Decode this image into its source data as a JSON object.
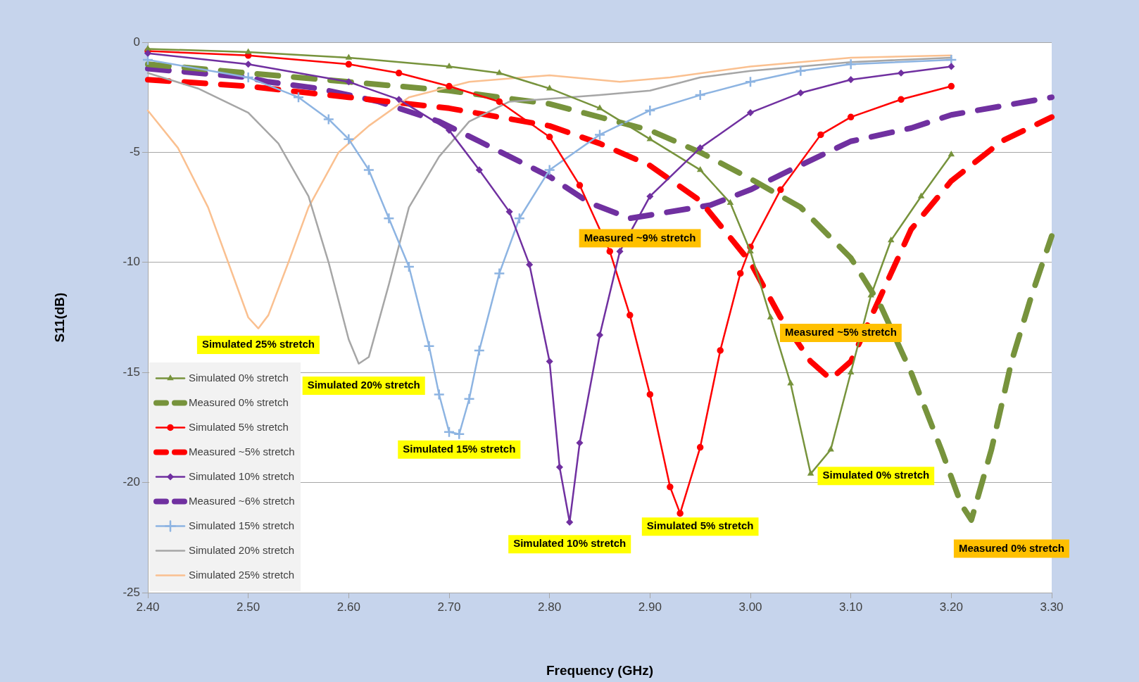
{
  "chart_data": {
    "type": "line",
    "xlabel": "Frequency (GHz)",
    "ylabel": "S11(dB)",
    "xlim": [
      2.4,
      3.3
    ],
    "xticks": [
      {
        "value": 2.4,
        "label": "2.40"
      },
      {
        "value": 2.5,
        "label": "2.50"
      },
      {
        "value": 2.6,
        "label": "2.60"
      },
      {
        "value": 2.7,
        "label": "2.70"
      },
      {
        "value": 2.8,
        "label": "2.80"
      },
      {
        "value": 2.9,
        "label": "2.90"
      },
      {
        "value": 3.0,
        "label": "3.00"
      },
      {
        "value": 3.1,
        "label": "3.10"
      },
      {
        "value": 3.2,
        "label": "3.20"
      },
      {
        "value": 3.3,
        "label": "3.30"
      }
    ],
    "ylim": [
      -25,
      0
    ],
    "yticks": [
      -25,
      -20,
      -15,
      -10,
      -5,
      0
    ],
    "grid": "y",
    "legend": "bottom left",
    "series": [
      {
        "name": "Simulated 0% stretch",
        "color": "#77933c",
        "marker": "triangle",
        "line_style": "solid",
        "x": [
          2.4,
          2.5,
          2.6,
          2.7,
          2.75,
          2.8,
          2.85,
          2.9,
          2.95,
          2.98,
          3.0,
          3.02,
          3.04,
          3.06,
          3.08,
          3.1,
          3.12,
          3.14,
          3.17,
          3.2
        ],
        "values": [
          -0.3,
          -0.45,
          -0.7,
          -1.1,
          -1.4,
          -2.1,
          -3.0,
          -4.4,
          -5.8,
          -7.3,
          -9.5,
          -12.5,
          -15.5,
          -19.6,
          -18.5,
          -15,
          -11.5,
          -9,
          -7,
          -5.1
        ]
      },
      {
        "name": "Measured 0% stretch",
        "color": "#77933c",
        "marker": "none",
        "line_style": "dashed",
        "x": [
          2.4,
          2.5,
          2.6,
          2.7,
          2.8,
          2.9,
          2.95,
          3.0,
          3.05,
          3.1,
          3.13,
          3.16,
          3.19,
          3.21,
          3.22,
          3.24,
          3.26,
          3.28,
          3.3
        ],
        "values": [
          -1.0,
          -1.4,
          -1.8,
          -2.2,
          -2.8,
          -4.0,
          -5.0,
          -6.2,
          -7.5,
          -9.8,
          -12,
          -15,
          -18.5,
          -21,
          -21.7,
          -18.5,
          -14.5,
          -11.5,
          -8.8
        ]
      },
      {
        "name": "Simulated 5% stretch",
        "color": "#ff0000",
        "marker": "circle",
        "line_style": "solid",
        "x": [
          2.4,
          2.5,
          2.6,
          2.65,
          2.7,
          2.75,
          2.8,
          2.83,
          2.86,
          2.88,
          2.9,
          2.92,
          2.93,
          2.95,
          2.97,
          2.99,
          3.0,
          3.03,
          3.07,
          3.1,
          3.15,
          3.2
        ],
        "values": [
          -0.4,
          -0.6,
          -1.0,
          -1.4,
          -2.0,
          -2.7,
          -4.3,
          -6.5,
          -9.5,
          -12.4,
          -16,
          -20.2,
          -21.4,
          -18.4,
          -14,
          -10.5,
          -9.3,
          -6.7,
          -4.2,
          -3.4,
          -2.6,
          -2.0
        ]
      },
      {
        "name": "Measured ~5% stretch",
        "color": "#ff0000",
        "marker": "none",
        "line_style": "dashed",
        "x": [
          2.4,
          2.5,
          2.6,
          2.7,
          2.8,
          2.85,
          2.9,
          2.95,
          3.0,
          3.03,
          3.06,
          3.08,
          3.1,
          3.13,
          3.16,
          3.2,
          3.25,
          3.3
        ],
        "values": [
          -1.7,
          -2.0,
          -2.5,
          -3.0,
          -3.8,
          -4.6,
          -5.6,
          -7.2,
          -10,
          -12.5,
          -14.5,
          -15.3,
          -14.5,
          -11.5,
          -8.5,
          -6.3,
          -4.5,
          -3.4
        ]
      },
      {
        "name": "Simulated 10% stretch",
        "color": "#7030a0",
        "marker": "diamond",
        "line_style": "solid",
        "x": [
          2.4,
          2.5,
          2.6,
          2.65,
          2.7,
          2.73,
          2.76,
          2.78,
          2.8,
          2.81,
          2.82,
          2.83,
          2.85,
          2.87,
          2.9,
          2.95,
          3.0,
          3.05,
          3.1,
          3.15,
          3.2
        ],
        "values": [
          -0.5,
          -1.0,
          -1.8,
          -2.6,
          -4.0,
          -5.8,
          -7.7,
          -10.1,
          -14.5,
          -19.3,
          -21.8,
          -18.2,
          -13.3,
          -9.5,
          -7,
          -4.8,
          -3.2,
          -2.3,
          -1.7,
          -1.4,
          -1.1
        ]
      },
      {
        "name": "Measured ~6% stretch",
        "color": "#7030a0",
        "marker": "none",
        "line_style": "dashed",
        "x": [
          2.4,
          2.5,
          2.52,
          2.57,
          2.63,
          2.69,
          2.73,
          2.8,
          2.84,
          2.88,
          2.96,
          3.0,
          3.04,
          3.1,
          3.16,
          3.2,
          3.3
        ],
        "values": [
          -1.2,
          -1.6,
          -1.8,
          -2.1,
          -2.7,
          -3.6,
          -4.5,
          -6.1,
          -7.3,
          -8.0,
          -7.4,
          -6.7,
          -5.8,
          -4.5,
          -3.9,
          -3.3,
          -2.5
        ]
      },
      {
        "name": "Simulated 15% stretch",
        "color": "#8db4e2",
        "marker": "cross",
        "line_style": "solid",
        "x": [
          2.4,
          2.5,
          2.55,
          2.58,
          2.6,
          2.62,
          2.64,
          2.66,
          2.68,
          2.69,
          2.7,
          2.71,
          2.72,
          2.73,
          2.75,
          2.77,
          2.8,
          2.85,
          2.9,
          2.95,
          3.0,
          3.05,
          3.1,
          3.2
        ],
        "values": [
          -0.8,
          -1.6,
          -2.5,
          -3.5,
          -4.4,
          -5.8,
          -8,
          -10.2,
          -13.8,
          -16,
          -17.7,
          -17.8,
          -16.2,
          -14,
          -10.5,
          -8.0,
          -5.8,
          -4.2,
          -3.1,
          -2.4,
          -1.8,
          -1.3,
          -1.0,
          -0.8
        ]
      },
      {
        "name": "Simulated 20% stretch",
        "color": "#a6a6a6",
        "marker": "none",
        "line_style": "solid",
        "x": [
          2.4,
          2.45,
          2.5,
          2.53,
          2.56,
          2.58,
          2.6,
          2.61,
          2.62,
          2.64,
          2.66,
          2.69,
          2.72,
          2.76,
          2.85,
          2.9,
          2.95,
          3.0,
          3.1,
          3.2
        ],
        "values": [
          -1.4,
          -2.1,
          -3.2,
          -4.6,
          -7,
          -10,
          -13.5,
          -14.6,
          -14.3,
          -11,
          -7.5,
          -5.2,
          -3.6,
          -2.7,
          -2.4,
          -2.2,
          -1.6,
          -1.3,
          -0.9,
          -0.7
        ]
      },
      {
        "name": "Simulated 25% stretch",
        "color": "#fac090",
        "marker": "none",
        "line_style": "solid",
        "x": [
          2.4,
          2.43,
          2.46,
          2.48,
          2.5,
          2.51,
          2.52,
          2.54,
          2.56,
          2.59,
          2.62,
          2.66,
          2.72,
          2.8,
          2.87,
          2.92,
          3.0,
          3.1,
          3.2
        ],
        "values": [
          -3.1,
          -4.8,
          -7.5,
          -10,
          -12.5,
          -13,
          -12.4,
          -10,
          -7.5,
          -5.0,
          -3.8,
          -2.5,
          -1.8,
          -1.5,
          -1.8,
          -1.6,
          -1.1,
          -0.7,
          -0.6
        ]
      }
    ],
    "annotations": [
      "Simulated 25% stretch",
      "Simulated 20% stretch",
      "Simulated 15% stretch",
      "Simulated 10% stretch",
      "Simulated 5% stretch",
      "Simulated 0% stretch",
      "Measured 0% stretch",
      "Measured ~5% stretch",
      "Measured ~9% stretch"
    ]
  }
}
